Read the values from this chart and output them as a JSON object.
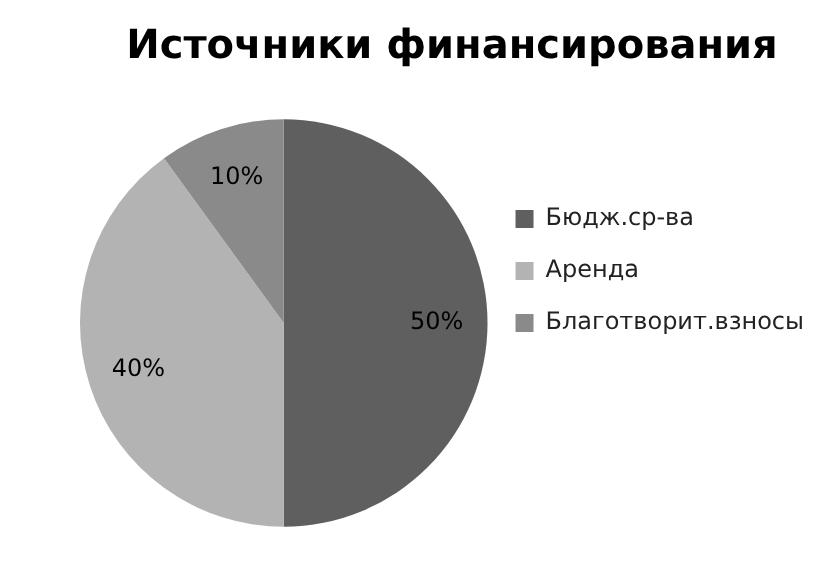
{
  "chart_data": {
    "type": "pie",
    "title": "Источники финансирования",
    "categories": [
      "Бюдж.ср-ва",
      "Аренда",
      "Благотворит.взносы"
    ],
    "values": [
      50,
      40,
      10
    ],
    "colors": [
      "#5f5f5f",
      "#b3b3b3",
      "#8a8a8a"
    ],
    "value_labels": [
      "50%",
      "40%",
      "10%"
    ],
    "legend": "right"
  }
}
